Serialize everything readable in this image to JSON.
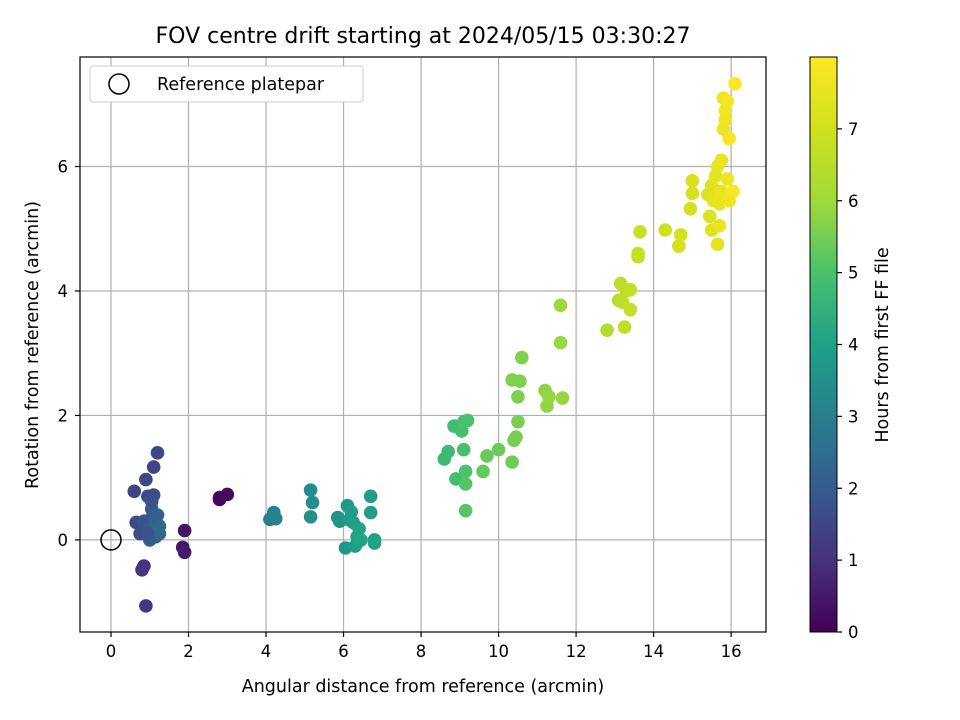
{
  "chart_data": {
    "type": "scatter",
    "title": "FOV centre drift starting at 2024/05/15 03:30:27",
    "xlabel": "Angular distance from reference (arcmin)",
    "ylabel": "Rotation from reference (arcmin)",
    "colorbar_label": "Hours from first FF file",
    "colormap": "viridis",
    "grid": true,
    "legend_location": "upper-left",
    "xlim": [
      -0.8,
      16.9
    ],
    "ylim": [
      -1.48,
      7.76
    ],
    "clim": [
      0,
      8.0
    ],
    "xticks": [
      "0",
      "2",
      "4",
      "6",
      "8",
      "10",
      "12",
      "14",
      "16"
    ],
    "yticks": [
      "0",
      "2",
      "4",
      "6"
    ],
    "cticks": [
      "0",
      "1",
      "2",
      "3",
      "4",
      "5",
      "6",
      "7"
    ],
    "reference": {
      "label": "Reference platepar",
      "x": 0,
      "y": 0,
      "marker": "open-circle"
    },
    "points": [
      {
        "x": 1.9,
        "y": 0.15,
        "h": 0.4
      },
      {
        "x": 1.85,
        "y": -0.12,
        "h": 0.45
      },
      {
        "x": 1.9,
        "y": -0.2,
        "h": 0.5
      },
      {
        "x": 2.8,
        "y": 0.68,
        "h": 0.1
      },
      {
        "x": 2.8,
        "y": 0.65,
        "h": 0.15
      },
      {
        "x": 3.0,
        "y": 0.73,
        "h": 0.2
      },
      {
        "x": 0.6,
        "y": 0.78,
        "h": 1.4
      },
      {
        "x": 0.65,
        "y": 0.28,
        "h": 1.6
      },
      {
        "x": 0.85,
        "y": -0.42,
        "h": 1.0
      },
      {
        "x": 0.8,
        "y": -0.48,
        "h": 1.05
      },
      {
        "x": 0.9,
        "y": -1.06,
        "h": 1.1
      },
      {
        "x": 0.75,
        "y": 0.1,
        "h": 1.7
      },
      {
        "x": 0.85,
        "y": 0.3,
        "h": 1.8
      },
      {
        "x": 0.9,
        "y": 0.97,
        "h": 1.5
      },
      {
        "x": 0.95,
        "y": 0.7,
        "h": 1.55
      },
      {
        "x": 1.0,
        "y": 0.18,
        "h": 1.9
      },
      {
        "x": 1.0,
        "y": 0.0,
        "h": 2.0
      },
      {
        "x": 1.05,
        "y": 0.35,
        "h": 1.85
      },
      {
        "x": 1.05,
        "y": 0.5,
        "h": 1.95
      },
      {
        "x": 1.05,
        "y": 0.62,
        "h": 1.75
      },
      {
        "x": 1.1,
        "y": 1.17,
        "h": 1.45
      },
      {
        "x": 1.1,
        "y": 0.72,
        "h": 1.65
      },
      {
        "x": 1.1,
        "y": 0.2,
        "h": 2.1
      },
      {
        "x": 1.15,
        "y": 0.05,
        "h": 2.05
      },
      {
        "x": 1.15,
        "y": 0.15,
        "h": 2.15
      },
      {
        "x": 1.15,
        "y": 0.3,
        "h": 2.2
      },
      {
        "x": 1.2,
        "y": 0.25,
        "h": 2.25
      },
      {
        "x": 1.2,
        "y": 0.4,
        "h": 2.1
      },
      {
        "x": 1.2,
        "y": 1.4,
        "h": 1.5
      },
      {
        "x": 1.25,
        "y": 0.1,
        "h": 2.3
      },
      {
        "x": 1.25,
        "y": 0.22,
        "h": 2.35
      },
      {
        "x": 0.95,
        "y": 0.1,
        "h": 1.8
      },
      {
        "x": 4.1,
        "y": 0.33,
        "h": 3.0
      },
      {
        "x": 4.2,
        "y": 0.44,
        "h": 3.05
      },
      {
        "x": 4.25,
        "y": 0.34,
        "h": 3.1
      },
      {
        "x": 5.15,
        "y": 0.8,
        "h": 3.4
      },
      {
        "x": 5.2,
        "y": 0.6,
        "h": 3.45
      },
      {
        "x": 5.15,
        "y": 0.37,
        "h": 3.5
      },
      {
        "x": 5.85,
        "y": 0.36,
        "h": 3.6
      },
      {
        "x": 5.9,
        "y": 0.3,
        "h": 3.65
      },
      {
        "x": 6.05,
        "y": -0.13,
        "h": 3.7
      },
      {
        "x": 6.1,
        "y": 0.55,
        "h": 3.75
      },
      {
        "x": 6.15,
        "y": 0.32,
        "h": 3.8
      },
      {
        "x": 6.2,
        "y": 0.45,
        "h": 3.85
      },
      {
        "x": 6.25,
        "y": 0.28,
        "h": 3.9
      },
      {
        "x": 6.3,
        "y": -0.1,
        "h": 3.95
      },
      {
        "x": 6.35,
        "y": 0.05,
        "h": 4.0
      },
      {
        "x": 6.4,
        "y": 0.18,
        "h": 4.05
      },
      {
        "x": 6.45,
        "y": 0.0,
        "h": 4.1
      },
      {
        "x": 6.7,
        "y": 0.7,
        "h": 3.85
      },
      {
        "x": 6.7,
        "y": 0.44,
        "h": 3.9
      },
      {
        "x": 6.8,
        "y": 0.0,
        "h": 4.0
      },
      {
        "x": 6.8,
        "y": -0.05,
        "h": 4.05
      },
      {
        "x": 8.6,
        "y": 1.3,
        "h": 4.7
      },
      {
        "x": 8.7,
        "y": 1.42,
        "h": 4.75
      },
      {
        "x": 8.85,
        "y": 1.83,
        "h": 4.8
      },
      {
        "x": 8.9,
        "y": 0.98,
        "h": 4.85
      },
      {
        "x": 9.05,
        "y": 1.75,
        "h": 4.9
      },
      {
        "x": 9.1,
        "y": 1.45,
        "h": 4.95
      },
      {
        "x": 9.1,
        "y": 1.9,
        "h": 5.0
      },
      {
        "x": 9.15,
        "y": 1.1,
        "h": 5.05
      },
      {
        "x": 9.15,
        "y": 0.9,
        "h": 5.1
      },
      {
        "x": 9.15,
        "y": 0.47,
        "h": 5.15
      },
      {
        "x": 9.2,
        "y": 1.92,
        "h": 5.0
      },
      {
        "x": 9.6,
        "y": 1.1,
        "h": 5.3
      },
      {
        "x": 9.7,
        "y": 1.35,
        "h": 5.35
      },
      {
        "x": 10.0,
        "y": 1.45,
        "h": 5.4
      },
      {
        "x": 10.35,
        "y": 1.25,
        "h": 5.45
      },
      {
        "x": 10.35,
        "y": 2.57,
        "h": 5.6
      },
      {
        "x": 10.4,
        "y": 1.6,
        "h": 5.5
      },
      {
        "x": 10.45,
        "y": 1.65,
        "h": 5.52
      },
      {
        "x": 10.5,
        "y": 1.9,
        "h": 5.55
      },
      {
        "x": 10.5,
        "y": 2.3,
        "h": 5.58
      },
      {
        "x": 10.55,
        "y": 2.55,
        "h": 5.62
      },
      {
        "x": 10.6,
        "y": 2.93,
        "h": 5.65
      },
      {
        "x": 11.2,
        "y": 2.4,
        "h": 5.8
      },
      {
        "x": 11.25,
        "y": 2.15,
        "h": 5.82
      },
      {
        "x": 11.3,
        "y": 2.3,
        "h": 5.85
      },
      {
        "x": 11.6,
        "y": 3.17,
        "h": 5.9
      },
      {
        "x": 11.6,
        "y": 3.77,
        "h": 5.95
      },
      {
        "x": 11.65,
        "y": 2.28,
        "h": 5.88
      },
      {
        "x": 12.8,
        "y": 3.37,
        "h": 6.4
      },
      {
        "x": 13.1,
        "y": 3.85,
        "h": 6.5
      },
      {
        "x": 13.15,
        "y": 4.12,
        "h": 6.55
      },
      {
        "x": 13.2,
        "y": 3.82,
        "h": 6.6
      },
      {
        "x": 13.25,
        "y": 3.42,
        "h": 6.62
      },
      {
        "x": 13.3,
        "y": 4.0,
        "h": 6.65
      },
      {
        "x": 13.4,
        "y": 3.7,
        "h": 6.7
      },
      {
        "x": 13.4,
        "y": 4.02,
        "h": 6.68
      },
      {
        "x": 13.6,
        "y": 4.55,
        "h": 6.75
      },
      {
        "x": 13.6,
        "y": 4.6,
        "h": 6.78
      },
      {
        "x": 13.65,
        "y": 4.95,
        "h": 6.8
      },
      {
        "x": 14.3,
        "y": 4.98,
        "h": 7.0
      },
      {
        "x": 14.65,
        "y": 4.72,
        "h": 7.05
      },
      {
        "x": 14.7,
        "y": 4.9,
        "h": 7.08
      },
      {
        "x": 14.95,
        "y": 5.32,
        "h": 7.1
      },
      {
        "x": 15.0,
        "y": 5.77,
        "h": 7.15
      },
      {
        "x": 15.0,
        "y": 5.57,
        "h": 7.12
      },
      {
        "x": 15.4,
        "y": 5.55,
        "h": 7.3
      },
      {
        "x": 15.45,
        "y": 5.2,
        "h": 7.32
      },
      {
        "x": 15.5,
        "y": 4.98,
        "h": 7.35
      },
      {
        "x": 15.5,
        "y": 5.6,
        "h": 7.38
      },
      {
        "x": 15.5,
        "y": 5.7,
        "h": 7.4
      },
      {
        "x": 15.55,
        "y": 5.45,
        "h": 7.42
      },
      {
        "x": 15.6,
        "y": 5.85,
        "h": 7.45
      },
      {
        "x": 15.65,
        "y": 4.75,
        "h": 7.48
      },
      {
        "x": 15.65,
        "y": 6.0,
        "h": 7.5
      },
      {
        "x": 15.7,
        "y": 5.05,
        "h": 7.52
      },
      {
        "x": 15.7,
        "y": 5.4,
        "h": 7.55
      },
      {
        "x": 15.75,
        "y": 6.1,
        "h": 7.58
      },
      {
        "x": 15.75,
        "y": 5.6,
        "h": 7.6
      },
      {
        "x": 15.8,
        "y": 6.6,
        "h": 7.62
      },
      {
        "x": 15.8,
        "y": 7.1,
        "h": 7.7
      },
      {
        "x": 15.85,
        "y": 6.75,
        "h": 7.72
      },
      {
        "x": 15.85,
        "y": 6.9,
        "h": 7.75
      },
      {
        "x": 15.9,
        "y": 7.05,
        "h": 7.78
      },
      {
        "x": 15.9,
        "y": 5.8,
        "h": 7.65
      },
      {
        "x": 15.95,
        "y": 5.45,
        "h": 7.68
      },
      {
        "x": 15.95,
        "y": 6.45,
        "h": 7.8
      },
      {
        "x": 16.05,
        "y": 5.6,
        "h": 7.85
      },
      {
        "x": 16.1,
        "y": 7.33,
        "h": 7.95
      }
    ]
  }
}
